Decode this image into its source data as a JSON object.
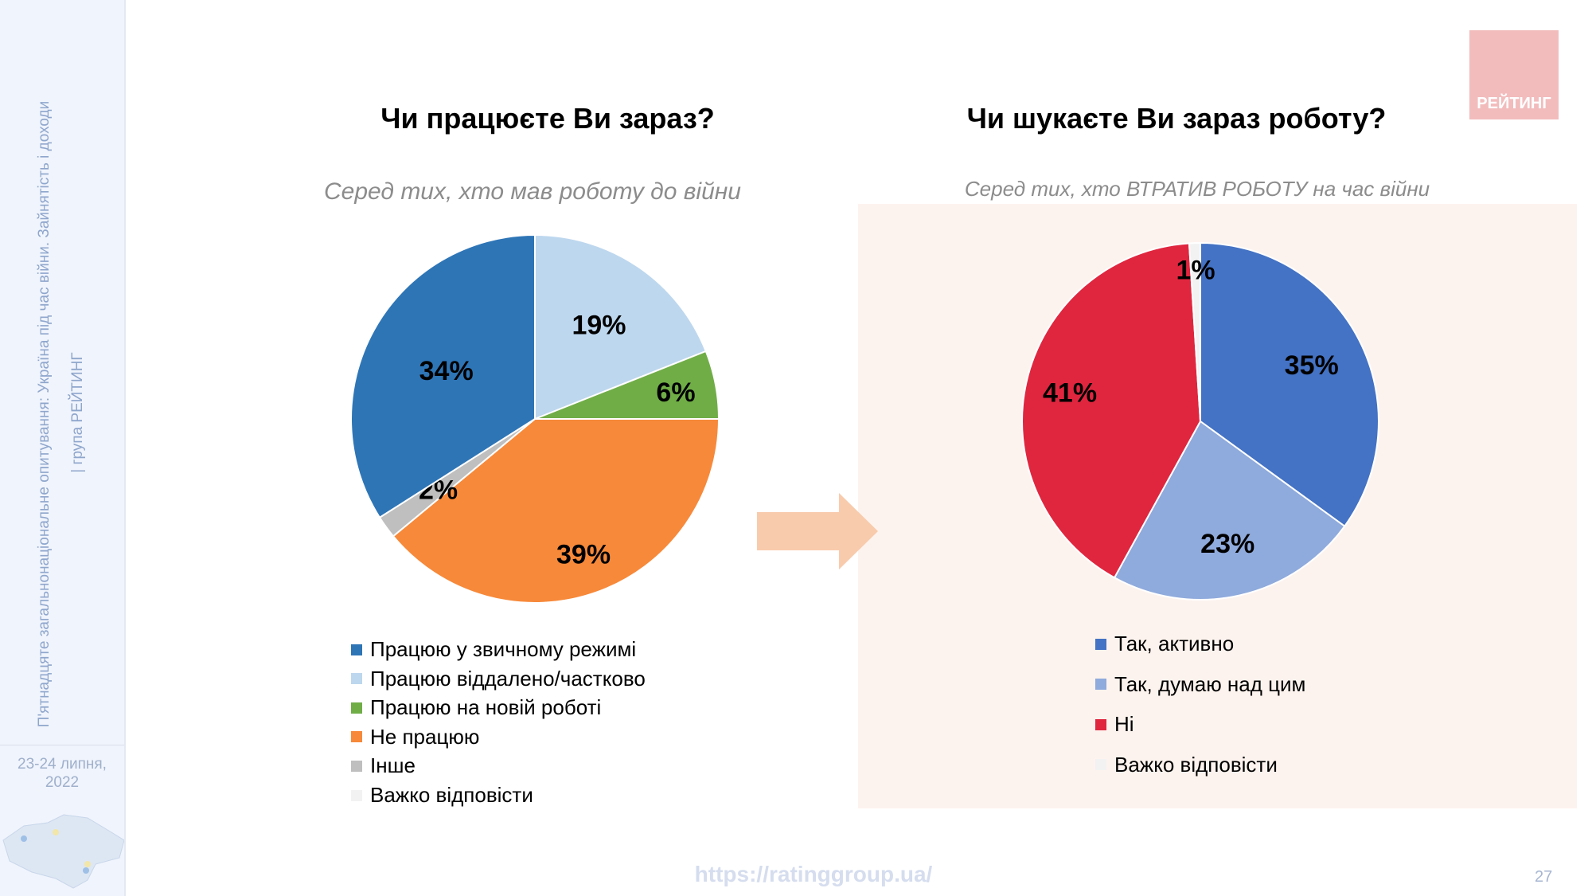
{
  "sidebar": {
    "survey_title": "П'ятнадцяте загальнонаціональне опитування: Україна під час війни. Зайнятість і доходи",
    "org": "| група РЕЙТИНГ",
    "date_line1": "23-24 липня,",
    "date_line2": "2022"
  },
  "logo": {
    "text": "РЕЙТИНГ"
  },
  "footer": {
    "url": "https://ratinggroup.ua/",
    "page": "27"
  },
  "colors": {
    "arrow": "#F8CBAD",
    "panel_bg": "#FDF3EE"
  },
  "chart_data": [
    {
      "type": "pie",
      "title": "Чи працюєте Ви зараз?",
      "subtitle": "Серед тих, хто мав роботу до війни",
      "legend_position": "bottom",
      "slices": [
        {
          "name": "Працюю віддалено/частково",
          "value": 19,
          "label": "19%",
          "color": "#BDD7EE"
        },
        {
          "name": "Працюю на новій роботі",
          "value": 6,
          "label": "6%",
          "color": "#70AD47"
        },
        {
          "name": "Не працюю",
          "value": 39,
          "label": "39%",
          "color": "#F7893A"
        },
        {
          "name": "Інше",
          "value": 2,
          "label": "2%",
          "color": "#BFBFBF"
        },
        {
          "name": "Працюю у звичному режимі",
          "value": 34,
          "label": "34%",
          "color": "#2E75B6"
        },
        {
          "name": "Важко відповісти",
          "value": 0,
          "label": "",
          "color": "#F2F2F2"
        }
      ],
      "legend": [
        "Працюю у звичному режимі",
        "Працюю віддалено/частково",
        "Працюю на новій роботі",
        "Не працюю",
        "Інше",
        "Важко відповісти"
      ],
      "legend_colors": [
        "#2E75B6",
        "#BDD7EE",
        "#70AD47",
        "#F7893A",
        "#BFBFBF",
        "#F2F2F2"
      ]
    },
    {
      "type": "pie",
      "title": "Чи шукаєте Ви зараз роботу?",
      "subtitle": "Серед тих, хто ВТРАТИВ РОБОТУ на час війни",
      "legend_position": "bottom",
      "slices": [
        {
          "name": "Так, активно",
          "value": 35,
          "label": "35%",
          "color": "#4472C4"
        },
        {
          "name": "Так, думаю над цим",
          "value": 23,
          "label": "23%",
          "color": "#8FAADC"
        },
        {
          "name": "Ні",
          "value": 41,
          "label": "41%",
          "color": "#E0263F"
        },
        {
          "name": "Важко відповісти",
          "value": 1,
          "label": "1%",
          "color": "#F2F2F2"
        }
      ],
      "legend": [
        "Так, активно",
        "Так, думаю над цим",
        "Ні",
        "Важко відповісти"
      ],
      "legend_colors": [
        "#4472C4",
        "#8FAADC",
        "#E0263F",
        "#F2F2F2"
      ]
    }
  ]
}
